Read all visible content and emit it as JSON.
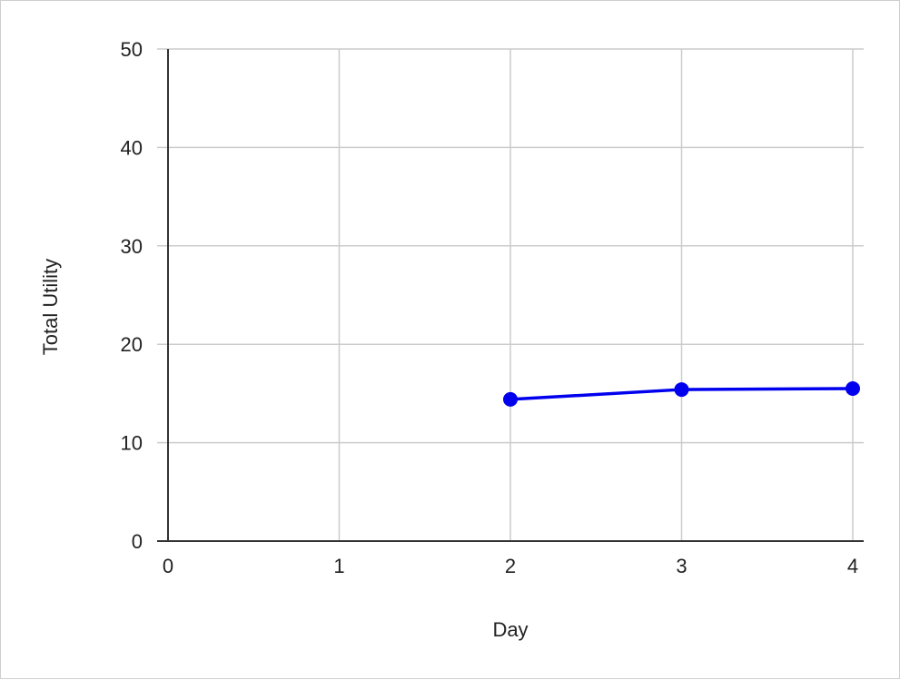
{
  "chart_data": {
    "type": "line",
    "title": "",
    "xlabel": "Day",
    "ylabel": "Total Utility",
    "xlim": [
      0,
      4
    ],
    "ylim": [
      0,
      50
    ],
    "x_ticks": [
      0,
      1,
      2,
      3,
      4
    ],
    "y_ticks": [
      0,
      10,
      20,
      30,
      40,
      50
    ],
    "x_tick_labels": [
      "0",
      "1",
      "2",
      "3",
      "4"
    ],
    "y_tick_labels": [
      "0",
      "10",
      "20",
      "30",
      "40",
      "50"
    ],
    "grid": true,
    "legend": "none",
    "series": [
      {
        "color": "#0000ee",
        "x": [
          2,
          3,
          4
        ],
        "y": [
          14.4,
          15.4,
          15.5
        ]
      }
    ]
  }
}
